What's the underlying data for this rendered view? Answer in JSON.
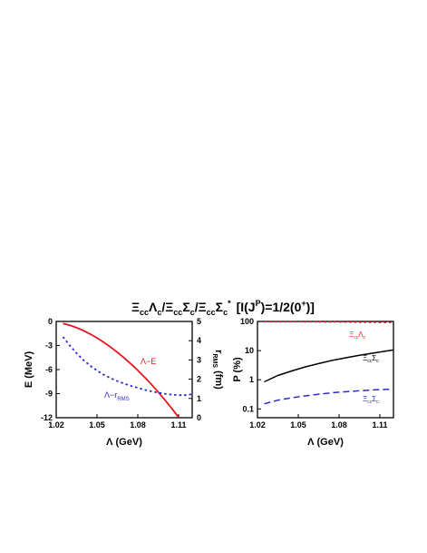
{
  "figure": {
    "title_parts": {
      "xi1": "Ξ",
      "xi1_sub": "cc",
      "lam": "Λ",
      "lam_sub": "c",
      "slash1": "/",
      "xi2": "Ξ",
      "xi2_sub": "cc",
      "sig1": "Σ",
      "sig1_sub": "c",
      "slash2": "/",
      "xi3": "Ξ",
      "xi3_sub": "cc",
      "sig2": "Σ",
      "sig2_sub": "c",
      "sig2_sup": "*",
      "ij_left": "[I(J",
      "ij_sup": "P",
      "ij_mid": ")=1/2(0",
      "ij_sup2": "+",
      "ij_right": ")]"
    }
  },
  "chart_data": [
    {
      "type": "line",
      "xlabel": "Λ (GeV)",
      "ylabel": "E (MeV)",
      "y2label_parts": {
        "r": "r",
        "sub": "RMS",
        "unit": " (fm)"
      },
      "xlim": [
        1.02,
        1.12
      ],
      "ylim": [
        -12,
        0
      ],
      "y2lim": [
        0,
        5
      ],
      "xticks": [
        "1.02",
        "1.05",
        "1.08",
        "1.11"
      ],
      "xtick_values": [
        1.02,
        1.05,
        1.08,
        1.11
      ],
      "yticks": [
        "0",
        "-3",
        "-6",
        "-9",
        "-12"
      ],
      "ytick_values": [
        0,
        -3,
        -6,
        -9,
        -12
      ],
      "y2ticks": [
        "0",
        "1",
        "2",
        "3",
        "4",
        "5"
      ],
      "y2tick_values": [
        0,
        1,
        2,
        3,
        4,
        5
      ],
      "series": [
        {
          "axis": "left",
          "color": "#e8141b",
          "style": "solid",
          "x": [
            1.025,
            1.03,
            1.035,
            1.04,
            1.045,
            1.05,
            1.055,
            1.06,
            1.065,
            1.07,
            1.075,
            1.08,
            1.085,
            1.09,
            1.095,
            1.1,
            1.105,
            1.11
          ],
          "y": [
            -0.25,
            -0.48,
            -0.78,
            -1.14,
            -1.57,
            -2.05,
            -2.6,
            -3.2,
            -3.85,
            -4.55,
            -5.3,
            -6.1,
            -6.95,
            -7.85,
            -8.8,
            -9.8,
            -10.85,
            -11.95
          ]
        },
        {
          "axis": "right",
          "color": "#2b2bd0",
          "style": "dotted",
          "x": [
            1.025,
            1.03,
            1.035,
            1.04,
            1.045,
            1.05,
            1.055,
            1.06,
            1.065,
            1.07,
            1.075,
            1.08,
            1.085,
            1.09,
            1.095,
            1.1,
            1.105,
            1.11,
            1.115,
            1.12
          ],
          "y": [
            4.2,
            3.75,
            3.35,
            3.0,
            2.7,
            2.45,
            2.23,
            2.05,
            1.9,
            1.77,
            1.65,
            1.55,
            1.45,
            1.37,
            1.3,
            1.24,
            1.2,
            1.17,
            1.17,
            1.22
          ]
        }
      ],
      "annotations": [
        {
          "text": "Λ−E",
          "color": "#e8141b"
        },
        {
          "text": "Λ−r",
          "sub": "RMS",
          "color": "#2b2bd0"
        }
      ]
    },
    {
      "type": "line",
      "xlabel": "Λ (GeV)",
      "ylabel": "P (%)",
      "xlim": [
        1.02,
        1.12
      ],
      "yscale": "log",
      "ylim": [
        0.05,
        100
      ],
      "xticks": [
        "1.02",
        "1.05",
        "1.08",
        "1.11"
      ],
      "xtick_values": [
        1.02,
        1.05,
        1.08,
        1.11
      ],
      "yticks": [
        "100",
        "10",
        "1",
        "0.1"
      ],
      "ytick_values": [
        100,
        10,
        1,
        0.1
      ],
      "series": [
        {
          "label_parts": {
            "a": "Ξ",
            "a_sub": "cc",
            "b": "Λ",
            "b_sub": "c"
          },
          "color": "#e8141b",
          "style": "dotted",
          "x": [
            1.025,
            1.05,
            1.075,
            1.1,
            1.12
          ],
          "y": [
            98.9,
            98.0,
            96.5,
            94.0,
            91.5
          ]
        },
        {
          "label_parts": {
            "a": "Ξ",
            "a_sub": "cc",
            "b": "Σ",
            "b_sub": "c"
          },
          "color": "#000000",
          "style": "solid",
          "x": [
            1.025,
            1.035,
            1.045,
            1.055,
            1.065,
            1.075,
            1.085,
            1.095,
            1.105,
            1.115,
            1.12
          ],
          "y": [
            0.85,
            1.4,
            2.0,
            2.75,
            3.6,
            4.6,
            5.7,
            6.9,
            8.2,
            9.7,
            10.5
          ]
        },
        {
          "label_parts": {
            "a": "Ξ",
            "a_sub": "cc",
            "b": "Σ",
            "b_sub": "c"
          },
          "color": "#2b2bd0",
          "style": "dashed",
          "x": [
            1.025,
            1.035,
            1.045,
            1.055,
            1.065,
            1.075,
            1.085,
            1.095,
            1.105,
            1.115,
            1.12
          ],
          "y": [
            0.15,
            0.2,
            0.24,
            0.28,
            0.32,
            0.36,
            0.39,
            0.42,
            0.45,
            0.47,
            0.48
          ]
        }
      ]
    }
  ]
}
